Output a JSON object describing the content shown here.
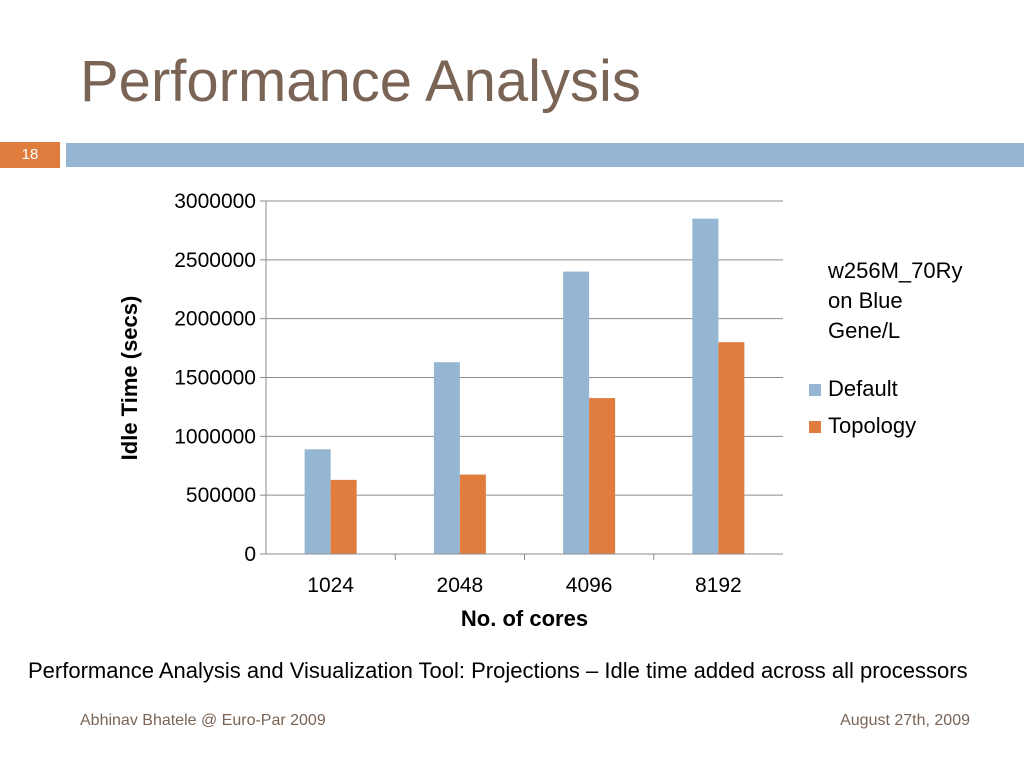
{
  "slide": {
    "title": "Performance Analysis",
    "number": "18",
    "caption": "Performance Analysis and Visualization Tool: Projections – Idle time added across all processors",
    "footer_left": "Abhinav Bhatele @ Euro-Par 2009",
    "footer_right": "August 27th, 2009"
  },
  "colors": {
    "title": "#7a6455",
    "accent_orange": "#df7c3e",
    "header_bar": "#94b6d2",
    "series_default": "#94b6d2",
    "series_topology": "#df7c3e"
  },
  "chart_data": {
    "type": "bar",
    "categories": [
      "1024",
      "2048",
      "4096",
      "8192"
    ],
    "series": [
      {
        "name": "Default",
        "values": [
          890000,
          1630000,
          2400000,
          2850000
        ]
      },
      {
        "name": "Topology",
        "values": [
          630000,
          675000,
          1325000,
          1800000
        ]
      }
    ],
    "xlabel": "No. of cores",
    "ylabel": "Idle Time (secs)",
    "ylim": [
      0,
      3000000
    ],
    "yticks": [
      "0",
      "500000",
      "1000000",
      "1500000",
      "2000000",
      "2500000",
      "3000000"
    ],
    "grid": true,
    "legend_position": "right",
    "annotation": [
      "w256M_70Ry",
      "on Blue",
      "Gene/L"
    ]
  }
}
